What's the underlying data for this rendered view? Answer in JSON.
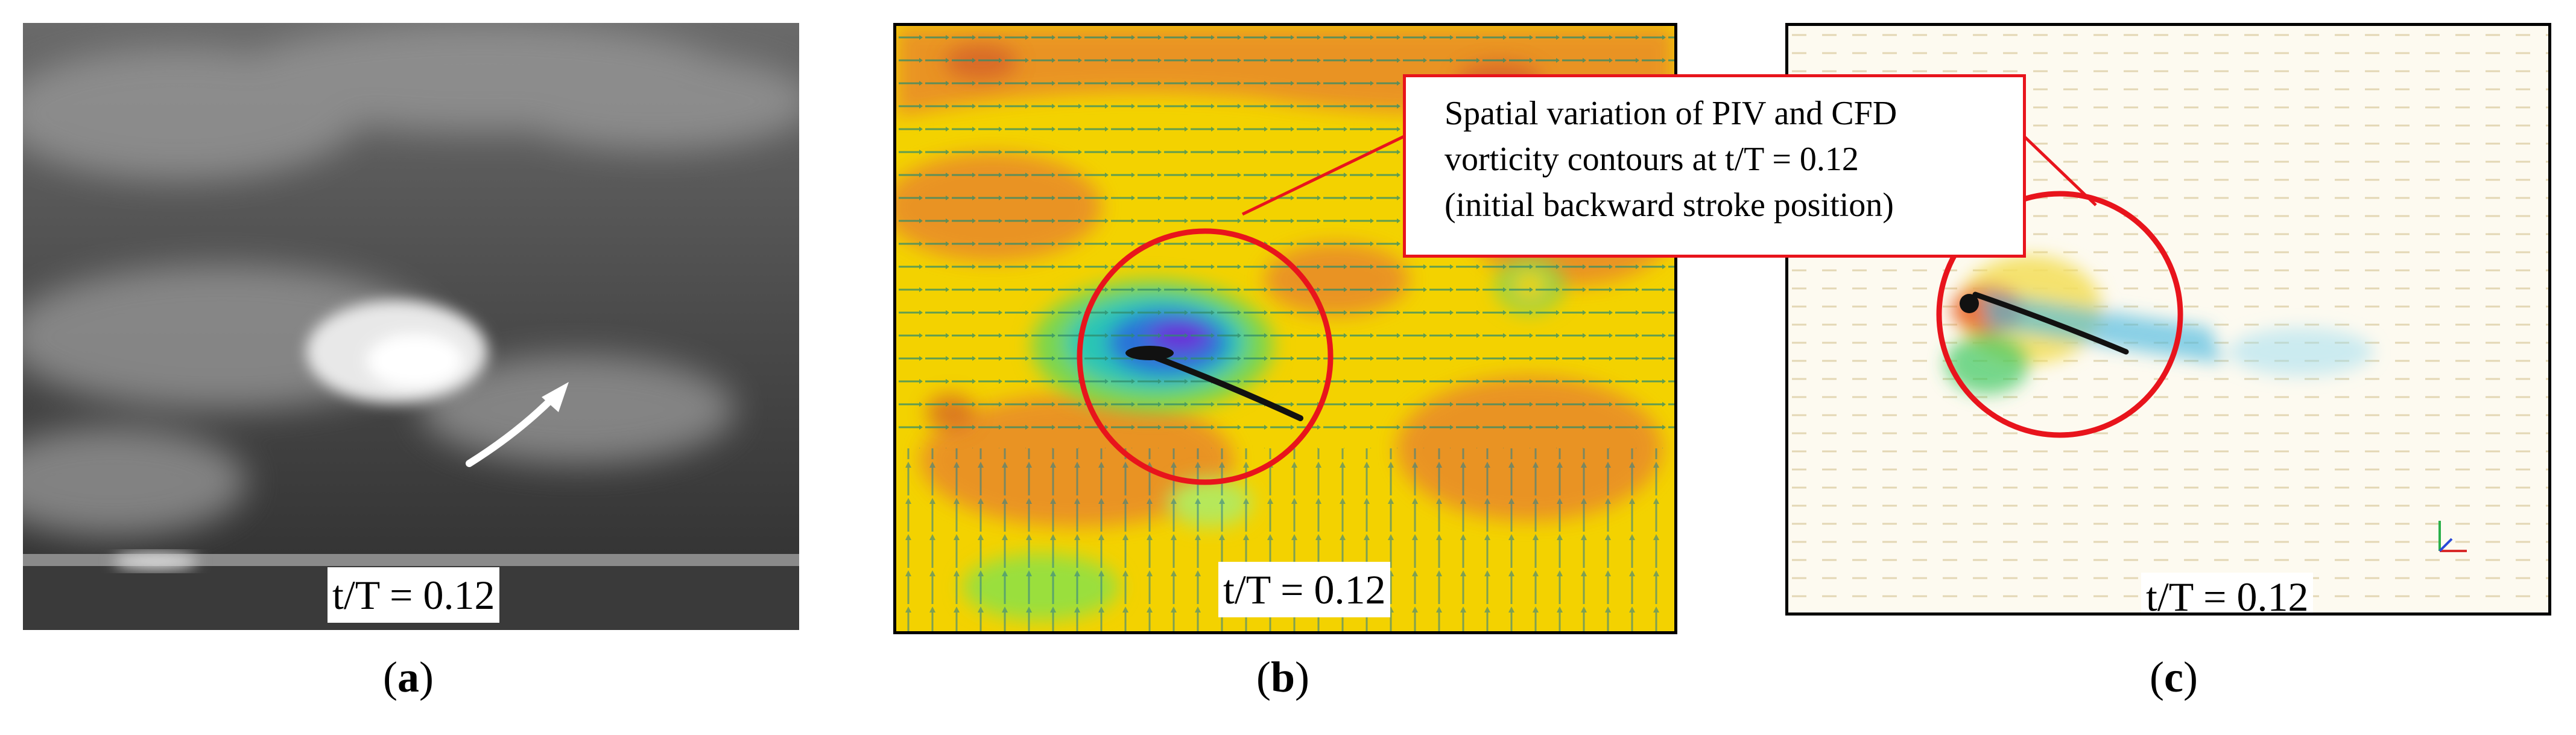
{
  "panels": [
    {
      "time_label": "t/T = 0.12",
      "caption_letter": "a"
    },
    {
      "time_label": "t/T = 0.12",
      "caption_letter": "b"
    },
    {
      "time_label": "t/T = 0.12",
      "caption_letter": "c"
    }
  ],
  "callout": {
    "line1": "Spatial variation of PIV and CFD",
    "line2": "vorticity contours at t/T = 0.12",
    "line3": "(initial backward stroke position)"
  },
  "colors": {
    "highlight_red": "#e8141c",
    "contour_yellow": "#f3d200",
    "contour_orange": "#e8892a",
    "vector_green": "#2e8b6a"
  }
}
